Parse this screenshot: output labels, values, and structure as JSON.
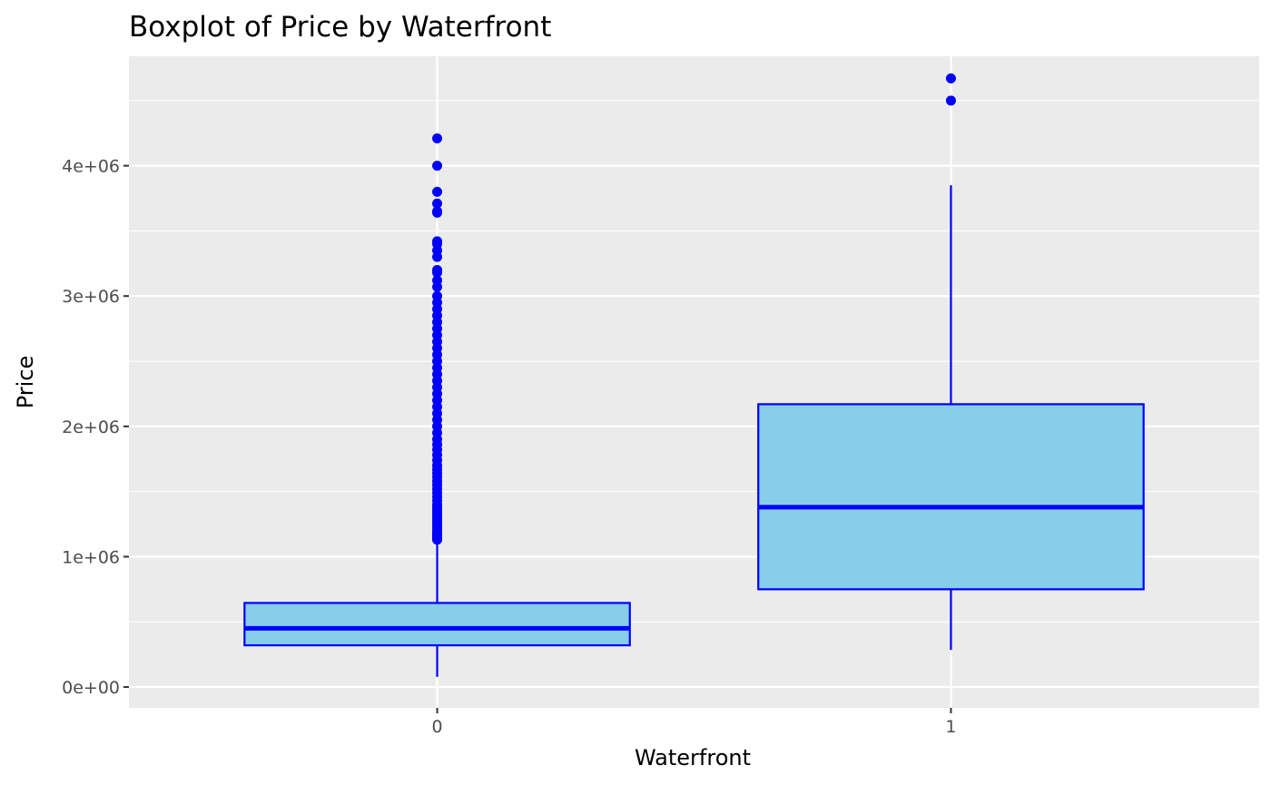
{
  "chart_data": {
    "type": "boxplot",
    "title": "Boxplot of Price by Waterfront",
    "xlabel": "Waterfront",
    "ylabel": "Price",
    "categories": [
      "0",
      "1"
    ],
    "ylim": [
      -160000,
      4840000
    ],
    "yticks": [
      {
        "value": 0,
        "label": "0e+00"
      },
      {
        "value": 1000000,
        "label": "1e+06"
      },
      {
        "value": 2000000,
        "label": "2e+06"
      },
      {
        "value": 3000000,
        "label": "3e+06"
      },
      {
        "value": 4000000,
        "label": "4e+06"
      }
    ],
    "y_minor_breaks": [
      500000,
      1500000,
      2500000,
      3500000,
      4500000
    ],
    "grid": true,
    "colors": {
      "panel": "#ebebeb",
      "grid": "#ffffff",
      "box_fill": "#87ceeb",
      "box_outline": "#0000ff",
      "outlier": "#0000ff"
    },
    "boxes": [
      {
        "category": "0",
        "whisker_low": 78000,
        "q1": 320000,
        "median": 450000,
        "q3": 645000,
        "whisker_high": 1127000,
        "outliers": [
          1130000,
          1140000,
          1150000,
          1160000,
          1170000,
          1180000,
          1190000,
          1200000,
          1220000,
          1240000,
          1260000,
          1280000,
          1300000,
          1320000,
          1340000,
          1360000,
          1380000,
          1400000,
          1430000,
          1460000,
          1490000,
          1520000,
          1550000,
          1580000,
          1610000,
          1640000,
          1670000,
          1700000,
          1740000,
          1780000,
          1820000,
          1860000,
          1900000,
          1950000,
          2000000,
          2050000,
          2100000,
          2150000,
          2200000,
          2250000,
          2300000,
          2350000,
          2400000,
          2450000,
          2500000,
          2550000,
          2600000,
          2650000,
          2700000,
          2750000,
          2800000,
          2850000,
          2900000,
          2950000,
          3000000,
          3070000,
          3120000,
          3180000,
          3200000,
          3300000,
          3350000,
          3400000,
          3420000,
          3640000,
          3650000,
          3710000,
          3800000,
          4000000,
          4210000
        ]
      },
      {
        "category": "1",
        "whisker_low": 285000,
        "q1": 750000,
        "median": 1380000,
        "q3": 2170000,
        "whisker_high": 3850000,
        "outliers": [
          4500000,
          4670000
        ]
      }
    ]
  }
}
